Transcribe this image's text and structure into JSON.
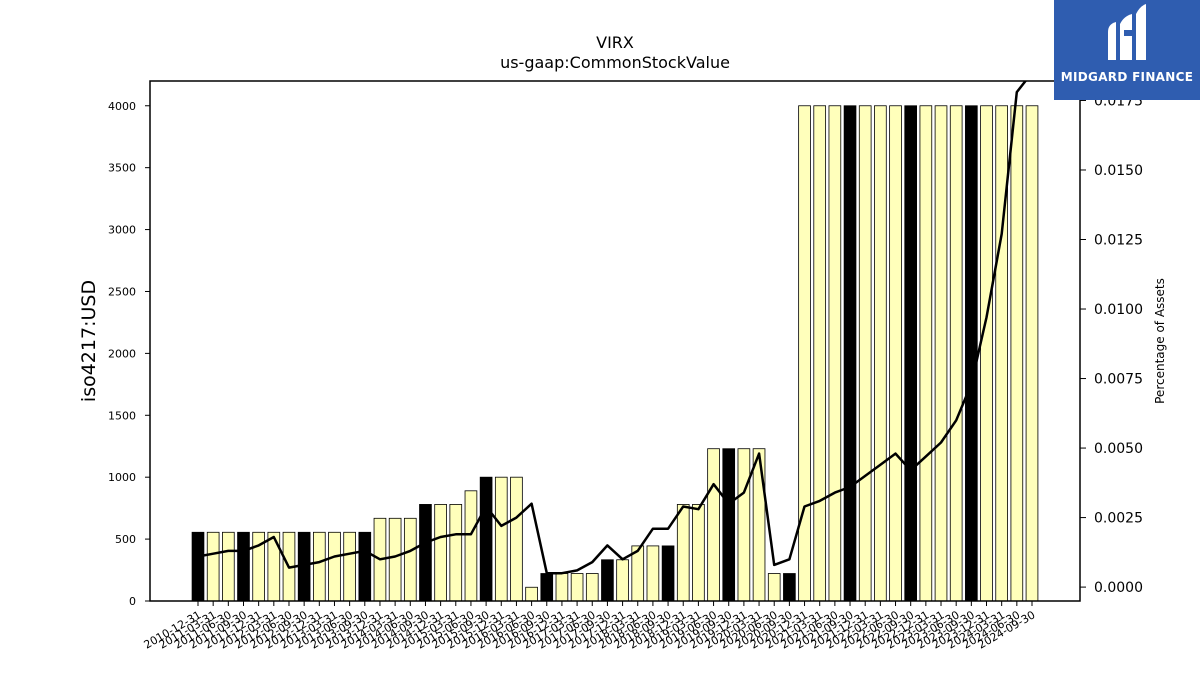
{
  "logo": {
    "text": "MIDGARD FINANCE",
    "background": "#2f5db0"
  },
  "chart_data": {
    "type": "bar",
    "title": "VIRX",
    "subtitle": "us-gaap:CommonStockValue",
    "ylabel": "iso4217:USD",
    "y2label": "Percentage of Assets",
    "ylim": [
      0,
      4200
    ],
    "y2lim": [
      -0.0005,
      0.0182
    ],
    "yticks": [
      0,
      500,
      1000,
      1500,
      2000,
      2500,
      3000,
      3500,
      4000
    ],
    "y2ticks": [
      0.0,
      0.0025,
      0.005,
      0.0075,
      0.01,
      0.0125,
      0.015,
      0.0175
    ],
    "y2tick_labels": [
      "0.0000",
      "0.0025",
      "0.0050",
      "0.0075",
      "0.0100",
      "0.0125",
      "0.0150",
      "0.0175"
    ],
    "grid": false,
    "bar_colors": {
      "annual": "#000000",
      "quarterly": "#ffffbb"
    },
    "line_color": "#000000",
    "categories": [
      "2010-12-31",
      "2011-03-31",
      "2011-06-30",
      "2011-09-30",
      "2011-12-31",
      "2012-03-31",
      "2012-06-30",
      "2012-09-30",
      "2012-12-31",
      "2013-03-31",
      "2013-06-30",
      "2013-09-30",
      "2013-12-31",
      "2014-03-31",
      "2014-06-30",
      "2014-09-30",
      "2014-12-31",
      "2015-03-31",
      "2015-06-30",
      "2015-09-30",
      "2015-12-31",
      "2016-03-31",
      "2016-06-30",
      "2016-09-30",
      "2016-12-31",
      "2017-03-31",
      "2017-06-30",
      "2017-09-30",
      "2017-12-31",
      "2018-03-31",
      "2018-06-30",
      "2018-09-30",
      "2018-12-31",
      "2019-03-31",
      "2019-06-30",
      "2019-09-30",
      "2019-12-31",
      "2020-03-31",
      "2020-06-30",
      "2020-09-30",
      "2020-12-31",
      "2021-03-31",
      "2021-06-30",
      "2021-09-30",
      "2021-12-31",
      "2022-03-31",
      "2022-06-30",
      "2022-09-30",
      "2022-12-31",
      "2023-03-31",
      "2023-06-30",
      "2023-09-30",
      "2023-12-31",
      "2024-03-31",
      "2024-06-30",
      "2024-09-30"
    ],
    "series": [
      {
        "type": "bar",
        "values": [
          555,
          555,
          555,
          555,
          555,
          555,
          555,
          555,
          555,
          555,
          555,
          555,
          668,
          668,
          668,
          780,
          780,
          780,
          890,
          1000,
          1000,
          1000,
          111,
          222,
          222,
          222,
          222,
          333,
          333,
          445,
          445,
          445,
          780,
          780,
          1230,
          1230,
          1230,
          1230,
          222,
          222,
          4000,
          4000,
          4000,
          4000,
          4000,
          4000,
          4000,
          4000,
          4000,
          4000,
          4000,
          4000,
          4000,
          4000,
          4000,
          4000
        ],
        "annual": [
          true,
          false,
          false,
          true,
          false,
          false,
          false,
          true,
          false,
          false,
          false,
          true,
          false,
          false,
          false,
          true,
          false,
          false,
          false,
          true,
          false,
          false,
          false,
          true,
          false,
          false,
          false,
          true,
          false,
          false,
          false,
          true,
          false,
          false,
          false,
          true,
          false,
          false,
          false,
          true,
          false,
          false,
          false,
          true,
          false,
          false,
          false,
          true,
          false,
          false,
          false,
          true,
          false,
          false,
          false,
          false
        ]
      },
      {
        "type": "line",
        "axis": "right",
        "values": [
          0.0011,
          0.0012,
          0.0013,
          0.0013,
          0.0015,
          0.0018,
          0.0007,
          0.0008,
          0.0009,
          0.0011,
          0.0012,
          0.0013,
          0.001,
          0.0011,
          0.0013,
          0.0016,
          0.0018,
          0.0019,
          0.0019,
          0.0029,
          0.0022,
          0.0025,
          0.003,
          0.0005,
          0.0005,
          0.0006,
          0.0009,
          0.0015,
          0.001,
          0.0013,
          0.0021,
          0.0021,
          0.0029,
          0.0028,
          0.0037,
          0.003,
          0.0034,
          0.0048,
          0.0008,
          0.001,
          0.0029,
          0.0031,
          0.0034,
          0.0036,
          0.004,
          0.0044,
          0.0048,
          0.0042,
          0.0047,
          0.0052,
          0.006,
          0.0073,
          0.0097,
          0.0127,
          0.0178,
          0.0185
        ]
      }
    ]
  }
}
